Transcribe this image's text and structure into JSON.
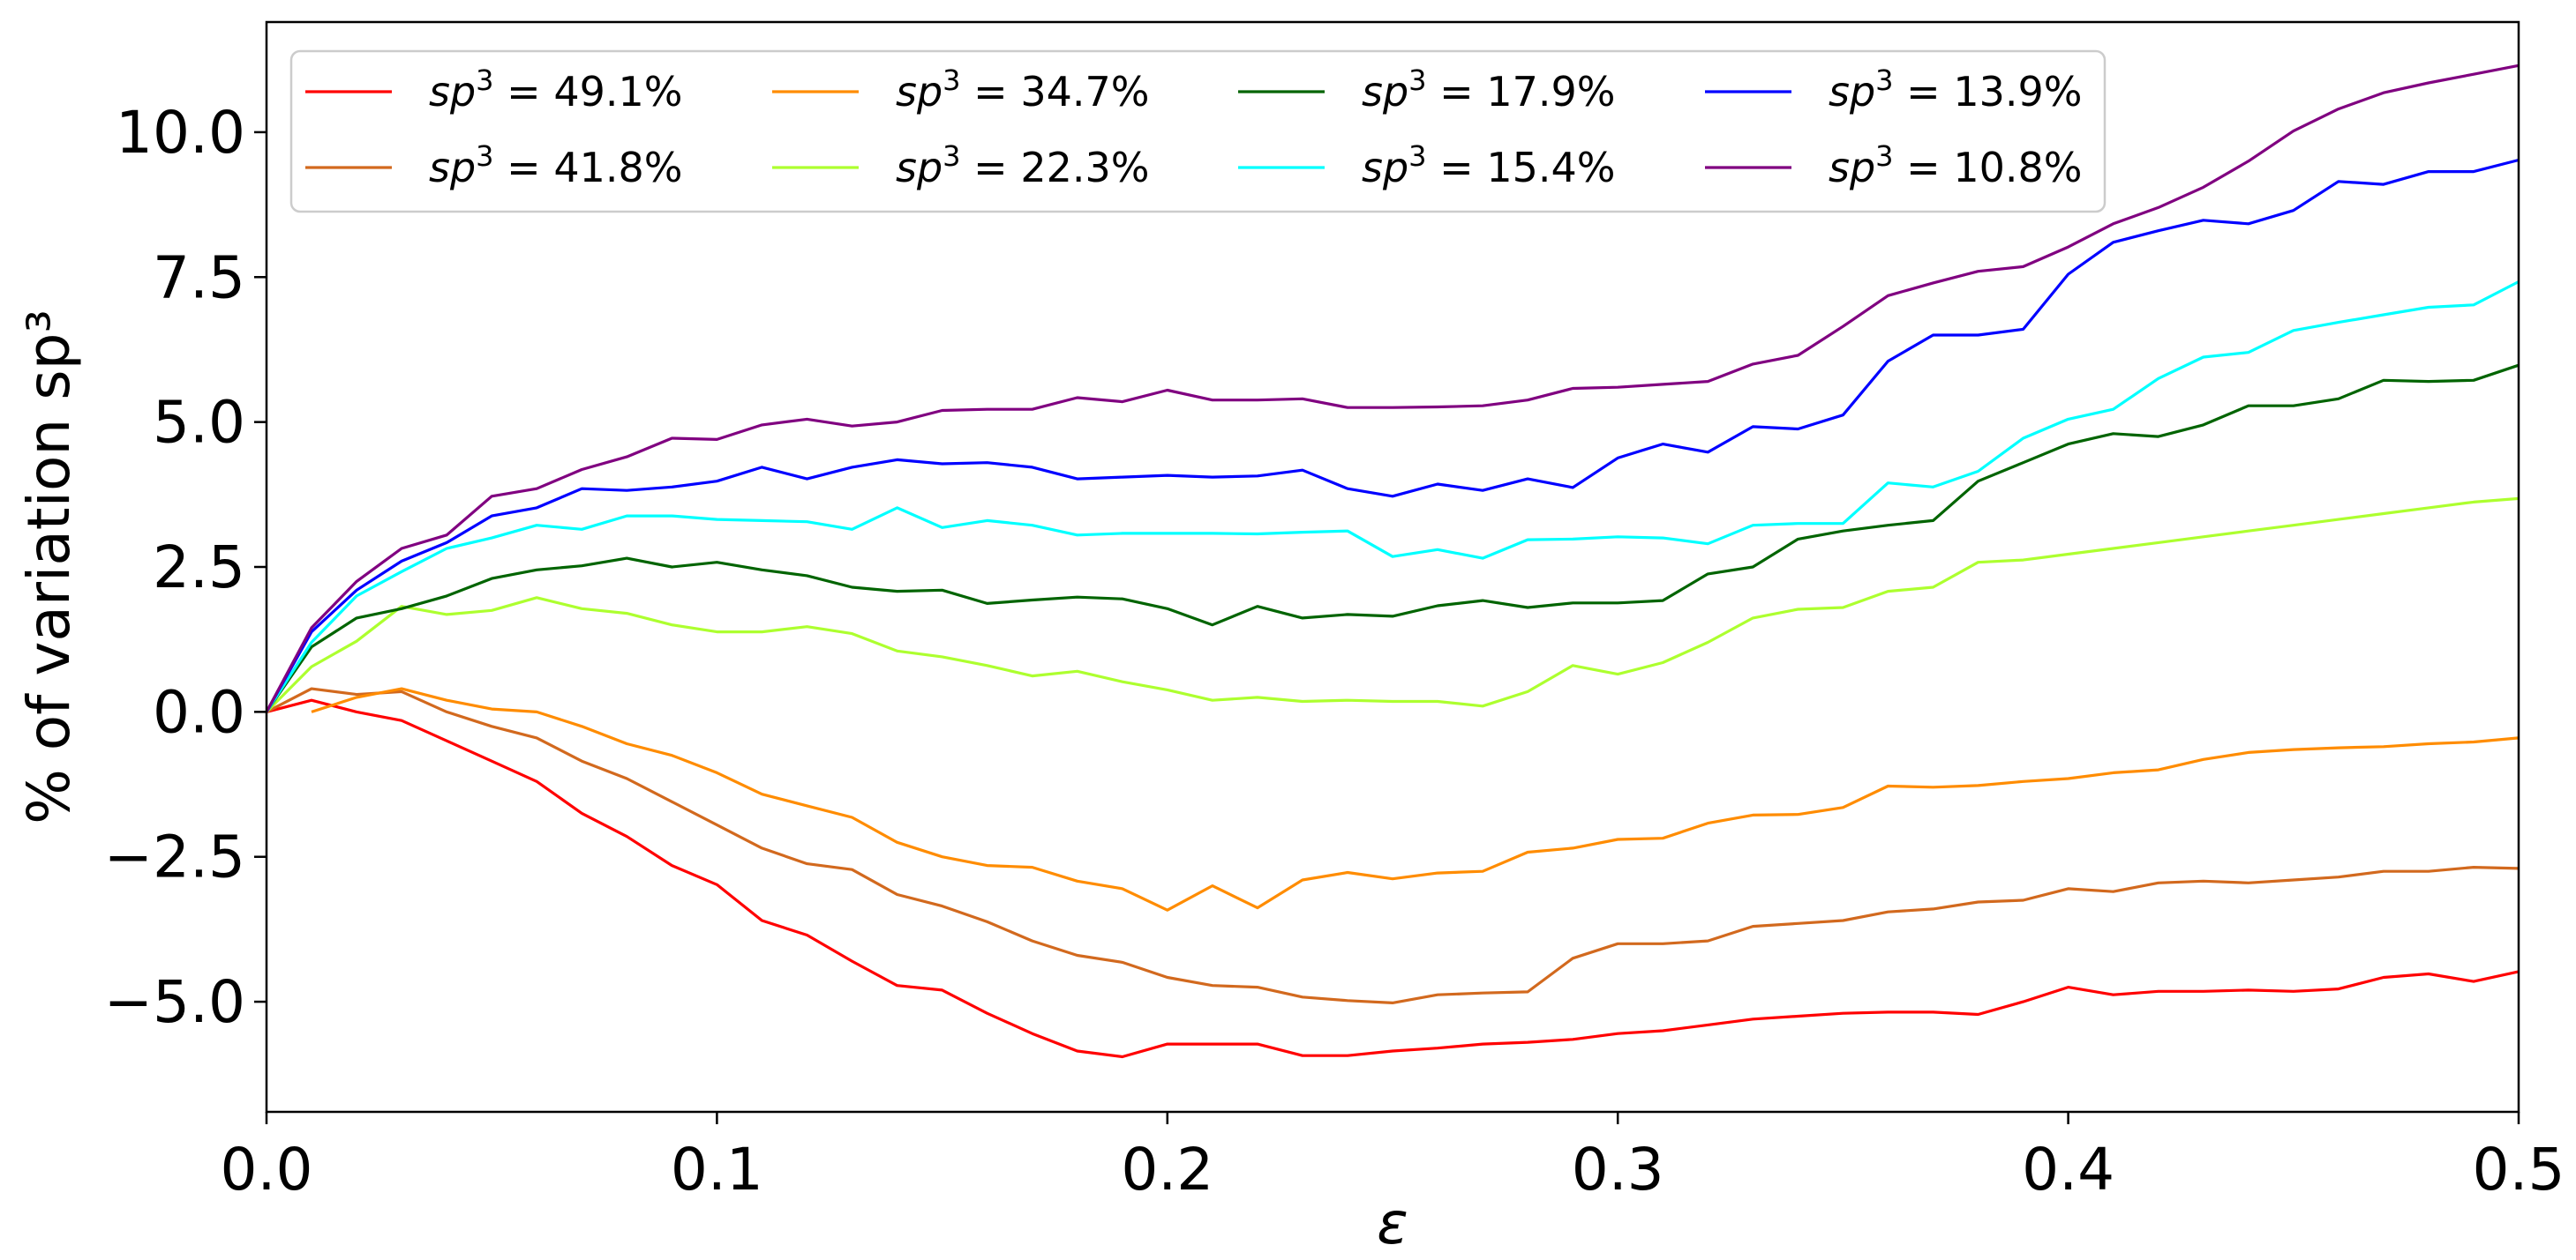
{
  "chart_data": {
    "type": "line",
    "title": "",
    "xlabel": "ε",
    "ylabel": "% of variation  sp³",
    "xlim": [
      0.0,
      0.5
    ],
    "ylim": [
      -6.9,
      11.9
    ],
    "x_ticks": [
      0.0,
      0.1,
      0.2,
      0.3,
      0.4,
      0.5
    ],
    "x_tick_labels": [
      "0.0",
      "0.1",
      "0.2",
      "0.3",
      "0.4",
      "0.5"
    ],
    "y_ticks": [
      -5.0,
      -2.5,
      0.0,
      2.5,
      5.0,
      7.5,
      10.0
    ],
    "y_tick_labels": [
      "−5.0",
      "−2.5",
      "0.0",
      "2.5",
      "5.0",
      "7.5",
      "10.0"
    ],
    "grid": false,
    "legend_position": "top-left",
    "legend_columns": 4,
    "x": [
      0.0,
      0.01,
      0.02,
      0.03,
      0.04,
      0.05,
      0.06,
      0.07,
      0.08,
      0.09,
      0.1,
      0.11,
      0.12,
      0.13,
      0.14,
      0.15,
      0.16,
      0.17,
      0.18,
      0.19,
      0.2,
      0.21,
      0.22,
      0.23,
      0.24,
      0.25,
      0.26,
      0.27,
      0.28,
      0.29,
      0.3,
      0.31,
      0.32,
      0.33,
      0.34,
      0.35,
      0.36,
      0.37,
      0.38,
      0.39,
      0.4,
      0.41,
      0.42,
      0.43,
      0.44,
      0.45,
      0.46,
      0.47,
      0.48,
      0.49,
      0.5
    ],
    "series": [
      {
        "name": "sp³ = 49.1%",
        "pct": "49.1%",
        "color": "#ff0000",
        "values": [
          0.0,
          0.2,
          0.0,
          -0.15,
          -0.5,
          -0.85,
          -1.2,
          -1.75,
          -2.15,
          -2.65,
          -2.98,
          -3.6,
          -3.85,
          -4.3,
          -4.72,
          -4.8,
          -5.2,
          -5.55,
          -5.85,
          -5.95,
          -5.73,
          -5.73,
          -5.73,
          -5.93,
          -5.93,
          -5.85,
          -5.8,
          -5.73,
          -5.7,
          -5.65,
          -5.55,
          -5.5,
          -5.4,
          -5.3,
          -5.25,
          -5.2,
          -5.18,
          -5.18,
          -5.22,
          -5.0,
          -4.75,
          -4.88,
          -4.82,
          -4.82,
          -4.8,
          -4.82,
          -4.78,
          -4.58,
          -4.52,
          -4.65,
          -4.48
        ]
      },
      {
        "name": "sp³ = 41.8%",
        "pct": "41.8%",
        "color": "#d2691e",
        "values": [
          0.0,
          0.4,
          0.3,
          0.35,
          0.0,
          -0.25,
          -0.45,
          -0.85,
          -1.15,
          -1.55,
          -1.95,
          -2.35,
          -2.62,
          -2.72,
          -3.15,
          -3.35,
          -3.62,
          -3.95,
          -4.2,
          -4.32,
          -4.58,
          -4.72,
          -4.75,
          -4.92,
          -4.98,
          -5.02,
          -4.88,
          -4.85,
          -4.83,
          -4.25,
          -4.0,
          -4.0,
          -3.95,
          -3.7,
          -3.65,
          -3.6,
          -3.45,
          -3.4,
          -3.28,
          -3.25,
          -3.05,
          -3.1,
          -2.95,
          -2.92,
          -2.95,
          -2.9,
          -2.85,
          -2.75,
          -2.75,
          -2.68,
          -2.7
        ]
      },
      {
        "name": "sp³ = 34.7%",
        "pct": "34.7%",
        "color": "#ff8c00",
        "values": [
          null,
          0.0,
          0.25,
          0.4,
          0.2,
          0.05,
          0.0,
          -0.25,
          -0.55,
          -0.75,
          -1.05,
          -1.42,
          -1.62,
          -1.82,
          -2.25,
          -2.5,
          -2.65,
          -2.68,
          -2.92,
          -3.05,
          -3.42,
          -3.0,
          -3.38,
          -2.9,
          -2.77,
          -2.88,
          -2.78,
          -2.75,
          -2.42,
          -2.35,
          -2.2,
          -2.18,
          -1.92,
          -1.78,
          -1.77,
          -1.65,
          -1.28,
          -1.3,
          -1.27,
          -1.2,
          -1.15,
          -1.05,
          -1.0,
          -0.82,
          -0.7,
          -0.65,
          -0.62,
          -0.6,
          -0.55,
          -0.52,
          -0.45
        ]
      },
      {
        "name": "sp³ = 22.3%",
        "pct": "22.3%",
        "color": "#adff2f",
        "values": [
          0.0,
          0.78,
          1.22,
          1.82,
          1.68,
          1.75,
          1.97,
          1.78,
          1.7,
          1.5,
          1.38,
          1.38,
          1.47,
          1.35,
          1.05,
          0.95,
          0.8,
          0.62,
          0.7,
          0.52,
          0.38,
          0.2,
          0.25,
          0.18,
          0.2,
          0.18,
          0.18,
          0.1,
          0.35,
          0.8,
          0.65,
          0.85,
          1.2,
          1.62,
          1.77,
          1.8,
          2.08,
          2.15,
          2.58,
          2.62,
          2.72,
          2.82,
          2.92,
          3.02,
          3.12,
          3.22,
          3.32,
          3.42,
          3.52,
          3.62,
          3.68
        ]
      },
      {
        "name": "sp³ = 17.9%",
        "pct": "17.9%",
        "color": "#006400",
        "values": [
          0.0,
          1.12,
          1.62,
          1.78,
          2.0,
          2.3,
          2.45,
          2.52,
          2.65,
          2.5,
          2.58,
          2.45,
          2.35,
          2.15,
          2.08,
          2.1,
          1.87,
          1.93,
          1.98,
          1.95,
          1.78,
          1.5,
          1.82,
          1.62,
          1.68,
          1.65,
          1.83,
          1.92,
          1.8,
          1.88,
          1.88,
          1.92,
          2.38,
          2.5,
          2.98,
          3.12,
          3.22,
          3.3,
          3.98,
          4.3,
          4.62,
          4.8,
          4.75,
          4.95,
          5.28,
          5.28,
          5.4,
          5.72,
          5.7,
          5.72,
          5.98
        ]
      },
      {
        "name": "sp³ = 15.4%",
        "pct": "15.4%",
        "color": "#00ffff",
        "values": [
          0.0,
          1.2,
          2.0,
          2.42,
          2.82,
          3.0,
          3.22,
          3.15,
          3.38,
          3.38,
          3.32,
          3.3,
          3.28,
          3.15,
          3.52,
          3.18,
          3.3,
          3.22,
          3.05,
          3.08,
          3.08,
          3.08,
          3.07,
          3.1,
          3.12,
          2.68,
          2.8,
          2.65,
          2.97,
          2.98,
          3.02,
          3.0,
          2.9,
          3.22,
          3.25,
          3.25,
          3.95,
          3.88,
          4.15,
          4.72,
          5.05,
          5.22,
          5.75,
          6.12,
          6.2,
          6.58,
          6.72,
          6.85,
          6.98,
          7.02,
          7.42
        ]
      },
      {
        "name": "sp³ = 13.9%",
        "pct": "13.9%",
        "color": "#0000ff",
        "values": [
          0.0,
          1.38,
          2.1,
          2.6,
          2.92,
          3.38,
          3.52,
          3.85,
          3.82,
          3.88,
          3.98,
          4.22,
          4.02,
          4.22,
          4.35,
          4.28,
          4.3,
          4.22,
          4.02,
          4.05,
          4.08,
          4.05,
          4.07,
          4.17,
          3.85,
          3.72,
          3.93,
          3.82,
          4.02,
          3.87,
          4.38,
          4.62,
          4.48,
          4.92,
          4.88,
          5.12,
          6.05,
          6.5,
          6.5,
          6.6,
          7.55,
          8.1,
          8.3,
          8.48,
          8.42,
          8.65,
          9.15,
          9.1,
          9.32,
          9.32,
          9.52
        ]
      },
      {
        "name": "sp³ = 10.8%",
        "pct": "10.8%",
        "color": "#800080",
        "values": [
          0.0,
          1.45,
          2.25,
          2.82,
          3.05,
          3.72,
          3.85,
          4.18,
          4.4,
          4.72,
          4.7,
          4.95,
          5.05,
          4.93,
          5.0,
          5.2,
          5.22,
          5.22,
          5.42,
          5.35,
          5.55,
          5.38,
          5.38,
          5.4,
          5.25,
          5.25,
          5.26,
          5.28,
          5.38,
          5.58,
          5.6,
          5.65,
          5.7,
          6.0,
          6.15,
          6.65,
          7.18,
          7.4,
          7.6,
          7.68,
          8.02,
          8.42,
          8.7,
          9.05,
          9.5,
          10.02,
          10.4,
          10.68,
          10.85,
          11.0,
          11.15
        ]
      }
    ]
  }
}
